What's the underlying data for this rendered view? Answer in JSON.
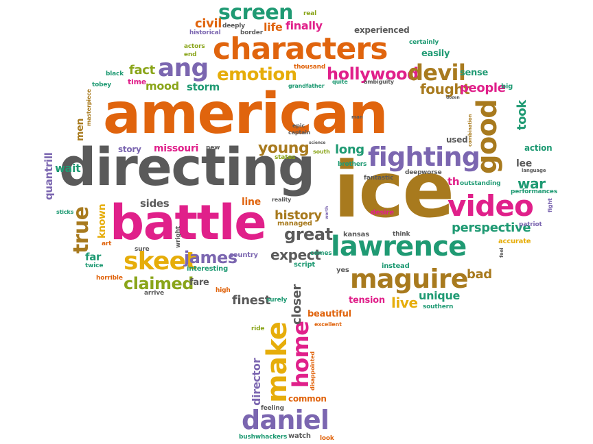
{
  "colors": {
    "orange": "#e0640d",
    "gray": "#5a5a5a",
    "magenta": "#e0208a",
    "green": "#1f9a73",
    "purple": "#7b66b0",
    "gold": "#e6ad0a",
    "brown": "#a87a1e",
    "olive": "#8aa51a",
    "teal": "#2aa88a"
  },
  "words": [
    {
      "text": "american",
      "color": "orange"
    },
    {
      "text": "directing",
      "color": "gray"
    },
    {
      "text": "ice",
      "color": "brown"
    },
    {
      "text": "battle",
      "color": "magenta"
    },
    {
      "text": "characters",
      "color": "orange"
    },
    {
      "text": "lawrence",
      "color": "green"
    },
    {
      "text": "video",
      "color": "magenta"
    },
    {
      "text": "fighting",
      "color": "purple"
    },
    {
      "text": "maguire",
      "color": "brown"
    },
    {
      "text": "good",
      "color": "brown"
    },
    {
      "text": "daniel",
      "color": "purple"
    },
    {
      "text": "make",
      "color": "gold"
    },
    {
      "text": "skeet",
      "color": "gold"
    },
    {
      "text": "home",
      "color": "magenta"
    },
    {
      "text": "screen",
      "color": "green"
    },
    {
      "text": "ang",
      "color": "purple"
    },
    {
      "text": "emotion",
      "color": "gold"
    },
    {
      "text": "hollywood",
      "color": "magenta"
    },
    {
      "text": "devil",
      "color": "brown"
    },
    {
      "text": "true",
      "color": "brown"
    },
    {
      "text": "claimed",
      "color": "olive"
    },
    {
      "text": "james",
      "color": "purple"
    },
    {
      "text": "young",
      "color": "brown"
    },
    {
      "text": "great",
      "color": "gray"
    },
    {
      "text": "perspective",
      "color": "green"
    },
    {
      "text": "fought",
      "color": "brown"
    },
    {
      "text": "people",
      "color": "magenta"
    },
    {
      "text": "war",
      "color": "green"
    },
    {
      "text": "history",
      "color": "brown"
    },
    {
      "text": "expect",
      "color": "gray"
    },
    {
      "text": "finest",
      "color": "gray"
    },
    {
      "text": "closer",
      "color": "gray"
    },
    {
      "text": "live",
      "color": "gold"
    },
    {
      "text": "unique",
      "color": "green"
    },
    {
      "text": "bad",
      "color": "brown"
    },
    {
      "text": "director",
      "color": "purple"
    },
    {
      "text": "beautiful",
      "color": "orange"
    },
    {
      "text": "took",
      "color": "green"
    },
    {
      "text": "quantrill",
      "color": "purple"
    },
    {
      "text": "long",
      "color": "green"
    },
    {
      "text": "fact",
      "color": "olive"
    },
    {
      "text": "mood",
      "color": "olive"
    },
    {
      "text": "storm",
      "color": "green"
    },
    {
      "text": "civil",
      "color": "orange"
    },
    {
      "text": "life",
      "color": "orange"
    },
    {
      "text": "finally",
      "color": "magenta"
    },
    {
      "text": "missouri",
      "color": "magenta"
    },
    {
      "text": "story",
      "color": "purple"
    },
    {
      "text": "wait",
      "color": "green"
    },
    {
      "text": "men",
      "color": "brown"
    },
    {
      "text": "known",
      "color": "gold"
    },
    {
      "text": "sides",
      "color": "gray"
    },
    {
      "text": "line",
      "color": "orange"
    },
    {
      "text": "far",
      "color": "green"
    },
    {
      "text": "fare",
      "color": "gray"
    },
    {
      "text": "tension",
      "color": "magenta"
    },
    {
      "text": "action",
      "color": "green"
    },
    {
      "text": "lee",
      "color": "gray"
    },
    {
      "text": "th",
      "color": "magenta"
    },
    {
      "text": "used",
      "color": "gray"
    },
    {
      "text": "sense",
      "color": "green"
    },
    {
      "text": "easily",
      "color": "green"
    },
    {
      "text": "experienced",
      "color": "gray"
    },
    {
      "text": "common",
      "color": "orange"
    },
    {
      "text": "watch",
      "color": "gray"
    },
    {
      "text": "bushwhackers",
      "color": "green"
    },
    {
      "text": "managed",
      "color": "brown"
    },
    {
      "text": "interesting",
      "color": "green"
    },
    {
      "text": "country",
      "color": "purple"
    },
    {
      "text": "comes",
      "color": "green"
    },
    {
      "text": "script",
      "color": "green"
    },
    {
      "text": "yes",
      "color": "gray"
    },
    {
      "text": "instead",
      "color": "green"
    },
    {
      "text": "accurate",
      "color": "gold"
    },
    {
      "text": "desire",
      "color": "magenta"
    },
    {
      "text": "think",
      "color": "gray"
    },
    {
      "text": "southern",
      "color": "green"
    },
    {
      "text": "kansas",
      "color": "gray"
    },
    {
      "text": "fantastic",
      "color": "gray"
    },
    {
      "text": "deep",
      "color": "gray"
    },
    {
      "text": "worse",
      "color": "gray"
    },
    {
      "text": "brothers",
      "color": "green"
    },
    {
      "text": "states",
      "color": "olive"
    },
    {
      "text": "south",
      "color": "olive"
    },
    {
      "text": "epic",
      "color": "gray"
    },
    {
      "text": "captain",
      "color": "gray"
    },
    {
      "text": "thousand",
      "color": "orange"
    },
    {
      "text": "quite",
      "color": "green"
    },
    {
      "text": "ambiguity",
      "color": "gray"
    },
    {
      "text": "grandfather",
      "color": "green"
    },
    {
      "text": "real",
      "color": "olive"
    },
    {
      "text": "deeply",
      "color": "gray"
    },
    {
      "text": "border",
      "color": "gray"
    },
    {
      "text": "historical",
      "color": "purple"
    },
    {
      "text": "actors",
      "color": "olive"
    },
    {
      "text": "end",
      "color": "olive"
    },
    {
      "text": "certainly",
      "color": "green"
    },
    {
      "text": "black",
      "color": "green"
    },
    {
      "text": "tobey",
      "color": "green"
    },
    {
      "text": "time",
      "color": "magenta"
    },
    {
      "text": "masterpiece",
      "color": "brown"
    },
    {
      "text": "big",
      "color": "green"
    },
    {
      "text": "outstanding",
      "color": "green"
    },
    {
      "text": "performances",
      "color": "green"
    },
    {
      "text": "language",
      "color": "gray"
    },
    {
      "text": "patriot",
      "color": "purple"
    },
    {
      "text": "fight",
      "color": "purple"
    },
    {
      "text": "reality",
      "color": "gray"
    },
    {
      "text": "new",
      "color": "gray"
    },
    {
      "text": "art",
      "color": "orange"
    },
    {
      "text": "sure",
      "color": "gray"
    },
    {
      "text": "wright",
      "color": "gray"
    },
    {
      "text": "twice",
      "color": "green"
    },
    {
      "text": "horrible",
      "color": "orange"
    },
    {
      "text": "arrive",
      "color": "gray"
    },
    {
      "text": "high",
      "color": "orange"
    },
    {
      "text": "surely",
      "color": "green"
    },
    {
      "text": "ride",
      "color": "olive"
    },
    {
      "text": "excellent",
      "color": "orange"
    },
    {
      "text": "disappointed",
      "color": "orange"
    },
    {
      "text": "feeling",
      "color": "gray"
    },
    {
      "text": "look",
      "color": "orange"
    },
    {
      "text": "sticks",
      "color": "green"
    },
    {
      "text": "combination",
      "color": "brown"
    },
    {
      "text": "dozen",
      "color": "gray"
    },
    {
      "text": "man",
      "color": "gray"
    },
    {
      "text": "feel",
      "color": "gray"
    },
    {
      "text": "worth",
      "color": "purple"
    },
    {
      "text": "science",
      "color": "gray"
    }
  ]
}
